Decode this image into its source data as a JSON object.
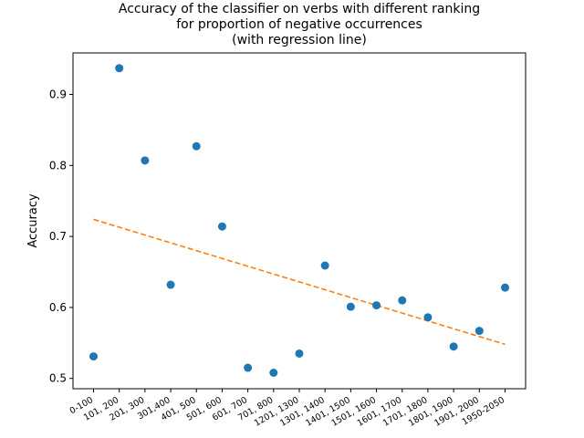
{
  "chart_data": {
    "type": "scatter",
    "title_lines": [
      "Accuracy of the classifier on verbs with different ranking",
      "for proportion of negative occurrences",
      "(with regression line)"
    ],
    "xlabel": "",
    "ylabel": "Accuracy",
    "categories": [
      "0-100",
      "101, 200",
      "201, 300",
      "301,400",
      "401, 500",
      "501, 600",
      "601, 700",
      "701, 800",
      "1201, 1300",
      "1301, 1400",
      "1401, 1500",
      "1501, 1600",
      "1601, 1700",
      "1701, 1800",
      "1801, 1900",
      "1901, 2000",
      "1950-2050"
    ],
    "values": [
      0.531,
      0.937,
      0.807,
      0.632,
      0.827,
      0.714,
      0.515,
      0.508,
      0.535,
      0.659,
      0.601,
      0.603,
      0.61,
      0.586,
      0.545,
      0.567,
      0.628
    ],
    "regression_line": {
      "start": 0.724,
      "end": 0.548
    },
    "yticks": [
      0.5,
      0.6,
      0.7,
      0.8,
      0.9
    ],
    "ylim": [
      0.4855,
      0.9585
    ],
    "colors": {
      "points": "#1f77b4",
      "regression": "#ff7f0e"
    }
  }
}
